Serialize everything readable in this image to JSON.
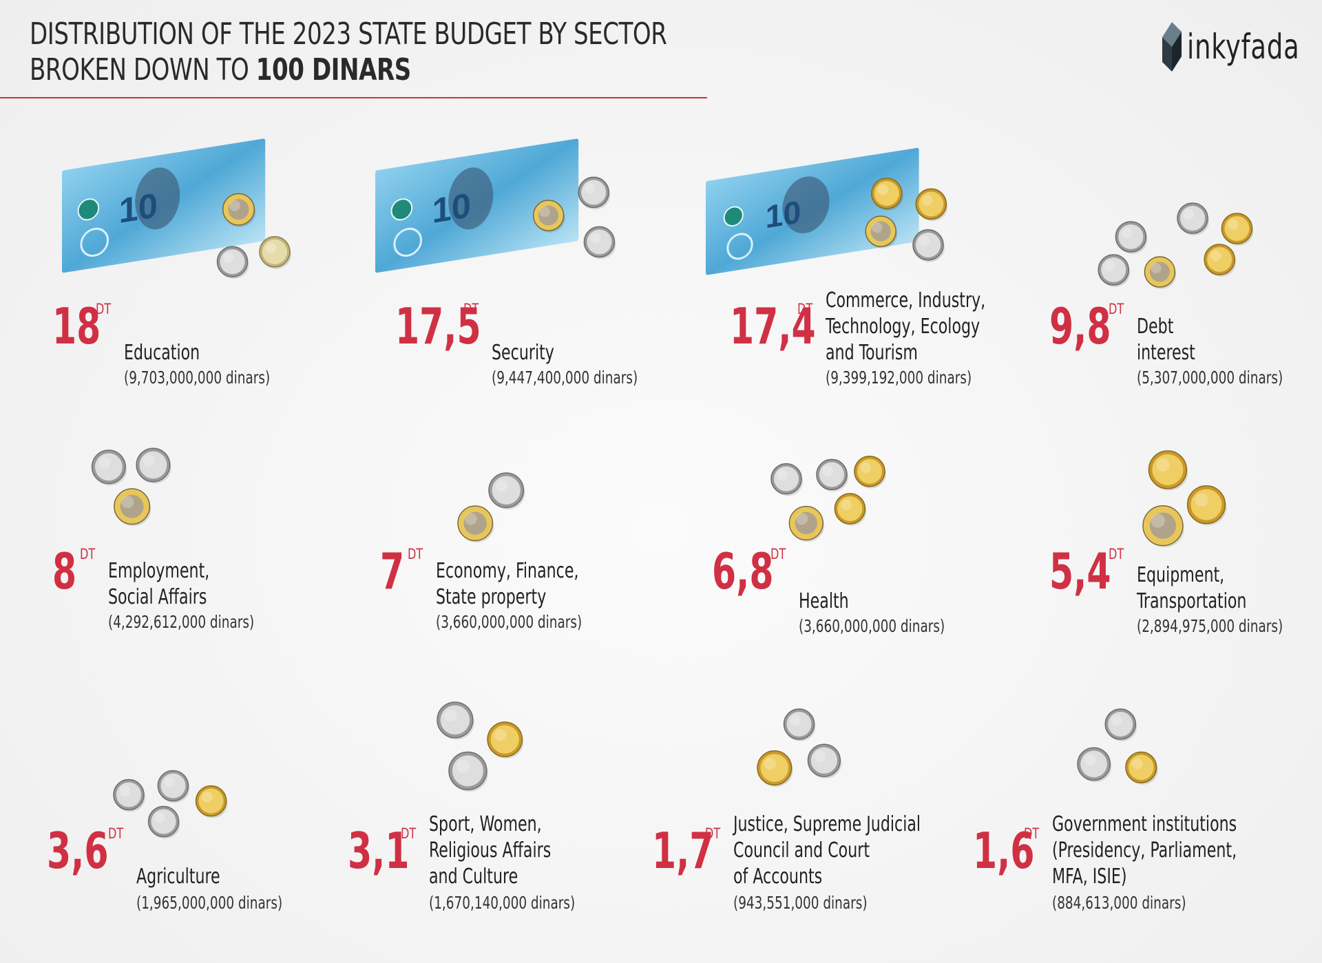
{
  "header": {
    "title_line1": "DISTRIBUTION OF THE 2023 STATE BUDGET BY SECTOR",
    "title_line2_prefix": "BROKEN DOWN TO ",
    "title_line2_bold": "100 DINARS",
    "logo_text": "inkyfada"
  },
  "unit": "DT",
  "accent_color": "#d03043",
  "sectors": [
    {
      "value": "18",
      "label": [
        "Education"
      ],
      "amount": "(9,703,000,000 dinars)"
    },
    {
      "value": "17,5",
      "label": [
        "Security"
      ],
      "amount": "(9,447,400,000 dinars)"
    },
    {
      "value": "17,4",
      "label": [
        "Commerce, Industry,",
        "Technology, Ecology",
        "and Tourism"
      ],
      "amount": "(9,399,192,000 dinars)"
    },
    {
      "value": "9,8",
      "label": [
        "Debt",
        "interest"
      ],
      "amount": "(5,307,000,000 dinars)"
    },
    {
      "value": "8",
      "label": [
        "Employment,",
        "Social Affairs"
      ],
      "amount": "(4,292,612,000 dinars)"
    },
    {
      "value": "7",
      "label": [
        "Economy, Finance,",
        "State property"
      ],
      "amount": "(3,660,000,000 dinars)"
    },
    {
      "value": "6,8",
      "label": [
        "Health"
      ],
      "amount": "(3,660,000,000 dinars)"
    },
    {
      "value": "5,4",
      "label": [
        "Equipment,",
        "Transportation"
      ],
      "amount": "(2,894,975,000 dinars)"
    },
    {
      "value": "3,6",
      "label": [
        "Agriculture"
      ],
      "amount": "(1,965,000,000 dinars)"
    },
    {
      "value": "3,1",
      "label": [
        "Sport, Women,",
        "Religious Affairs",
        "and Culture"
      ],
      "amount": "(1,670,140,000 dinars)"
    },
    {
      "value": "1,7",
      "label": [
        "Justice, Supreme Judicial",
        "Council and Court",
        "of Accounts"
      ],
      "amount": "(943,551,000 dinars)"
    },
    {
      "value": "1,6",
      "label": [
        "Government institutions",
        "(Presidency, Parliament,",
        "MFA, ISIE)"
      ],
      "amount": "(884,613,000 dinars)"
    }
  ],
  "illustrations": [
    {
      "note": "10 dinar note",
      "coins": [
        "bimetal",
        "silver",
        "gold-small"
      ]
    },
    {
      "note": "10 dinar note",
      "coins": [
        "bimetal",
        "silver",
        "silver"
      ]
    },
    {
      "note": "10 dinar note",
      "coins": [
        "gold",
        "gold",
        "bimetal",
        "silver"
      ]
    },
    {
      "coins": [
        "silver",
        "silver",
        "gold",
        "silver",
        "bimetal",
        "gold"
      ]
    },
    {
      "coins": [
        "silver",
        "silver",
        "bimetal"
      ]
    },
    {
      "coins": [
        "silver",
        "bimetal"
      ]
    },
    {
      "coins": [
        "silver",
        "silver",
        "gold",
        "gold",
        "bimetal"
      ]
    },
    {
      "coins": [
        "gold",
        "gold",
        "bimetal"
      ]
    },
    {
      "coins": [
        "silver",
        "silver",
        "gold",
        "silver"
      ]
    },
    {
      "coins": [
        "silver",
        "gold",
        "silver"
      ]
    },
    {
      "coins": [
        "silver",
        "silver",
        "gold"
      ]
    },
    {
      "coins": [
        "silver",
        "silver",
        "gold"
      ]
    }
  ]
}
